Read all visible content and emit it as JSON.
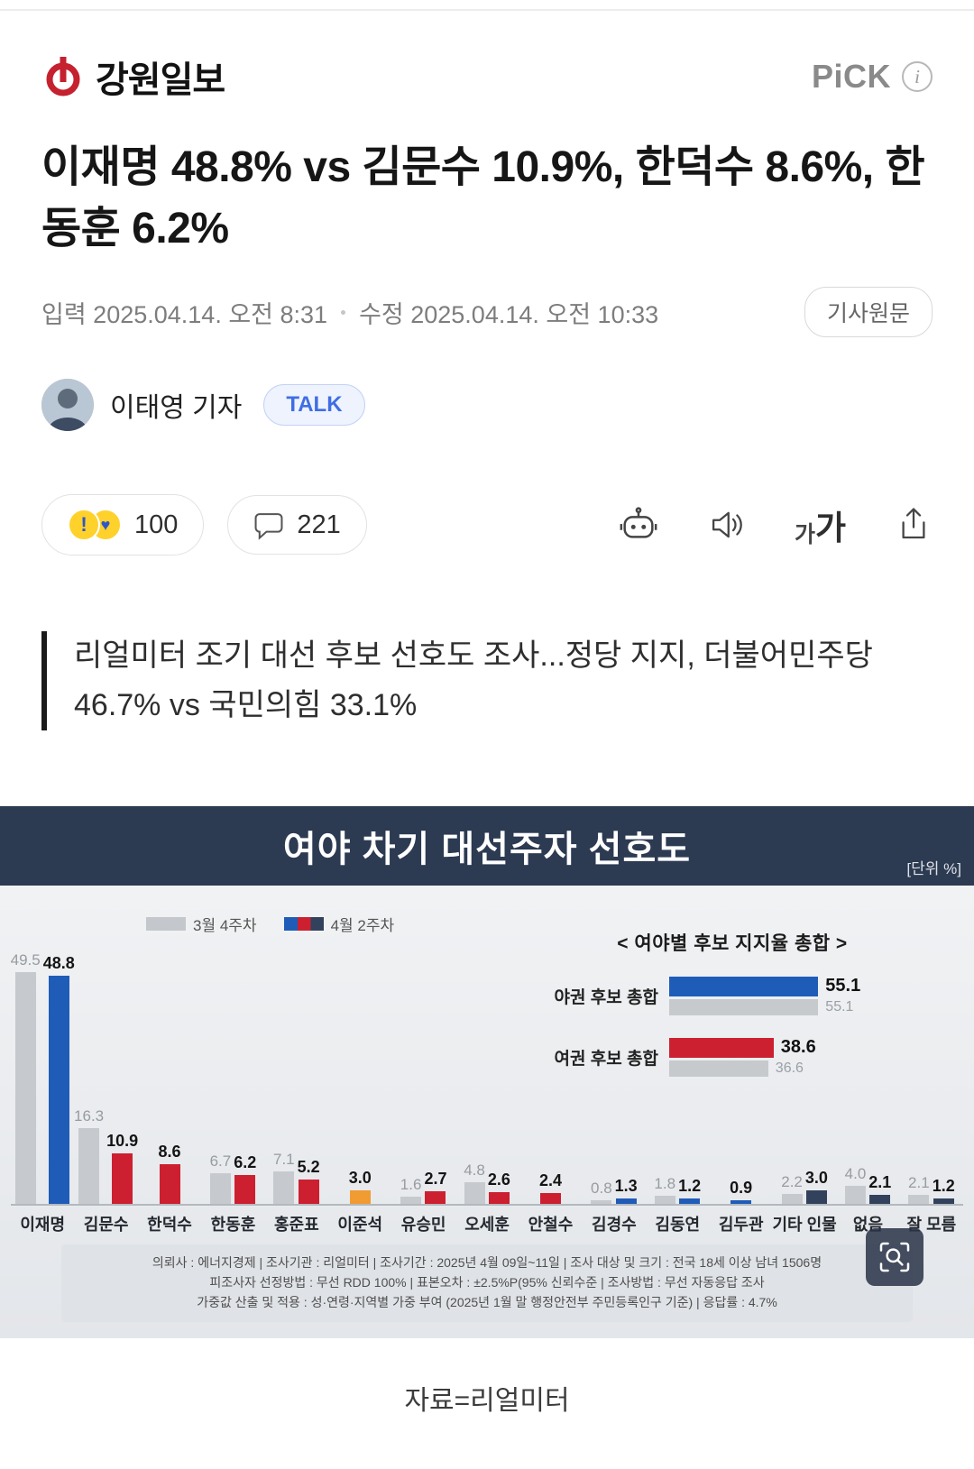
{
  "header": {
    "brand": "강원일보",
    "pick_label": "PiCK"
  },
  "article": {
    "title": "이재명 48.8% vs 김문수 10.9%, 한덕수 8.6%, 한동훈 6.2%",
    "published": "입력 2025.04.14. 오전 8:31",
    "modified": "수정 2025.04.14. 오전 10:33",
    "original_button": "기사원문",
    "reporter": "이태영 기자",
    "talk_button": "TALK",
    "reaction_count": "100",
    "comment_count": "221",
    "font_small": "가",
    "font_large": "가"
  },
  "quote": {
    "text": "리얼미터 조기 대선 후보 선호도 조사...정당 지지, 더불어민주당 46.7% vs 국민의힘 33.1%"
  },
  "caption": "자료=리얼미터",
  "chart_data": {
    "type": "bar",
    "title": "여야 차기 대선주자 선호도",
    "unit_label": "[단위 %]",
    "legend": {
      "prev": "3월 4주차",
      "curr": "4월 2주차"
    },
    "categories": [
      "이재명",
      "김문수",
      "한덕수",
      "한동훈",
      "홍준표",
      "이준석",
      "유승민",
      "오세훈",
      "안철수",
      "김경수",
      "김동연",
      "김두관",
      "기타 인물",
      "없음",
      "잘 모름"
    ],
    "series": [
      {
        "name": "3월 4주차",
        "values": [
          49.5,
          16.3,
          null,
          6.7,
          7.1,
          null,
          1.6,
          4.8,
          null,
          0.8,
          1.8,
          null,
          2.2,
          4.0,
          2.1
        ]
      },
      {
        "name": "4월 2주차",
        "values": [
          48.8,
          10.9,
          8.6,
          6.2,
          5.2,
          3.0,
          2.7,
          2.6,
          2.4,
          1.3,
          1.2,
          0.9,
          3.0,
          2.1,
          1.2
        ]
      }
    ],
    "bar_colors": [
      "#1f5cb8",
      "#cc2030",
      "#cc2030",
      "#cc2030",
      "#cc2030",
      "#f09c32",
      "#cc2030",
      "#cc2030",
      "#cc2030",
      "#1f5cb8",
      "#1f5cb8",
      "#1f5cb8",
      "#33425c",
      "#33425c",
      "#33425c"
    ],
    "prev_color": "#c6c9cd",
    "ylim": [
      0,
      52
    ],
    "summary": {
      "title": "< 여야별 후보 지지율 총합 >",
      "rows": [
        {
          "label": "야권 후보 총합",
          "current": 55.1,
          "previous": 55.1,
          "color": "#1f5cb8"
        },
        {
          "label": "여권 후보 총합",
          "current": 38.6,
          "previous": 36.6,
          "color": "#cc2030"
        }
      ]
    },
    "footnote_lines": [
      "의뢰사 : 에너지경제 | 조사기관 : 리얼미터 | 조사기간 : 2025년 4월 09일~11일 | 조사 대상 및 크기 : 전국 18세 이상 남녀 1506명",
      "피조사자 선정방법 : 무선 RDD 100% | 표본오차 : ±2.5%P(95% 신뢰수준 | 조사방법 : 무선 자동응답 조사",
      "가중값 산출 및 적용 : 성·연령·지역별 가중 부여 (2025년 1월 말 행정안전부 주민등록인구 기준) | 응답률 : 4.7%"
    ]
  }
}
